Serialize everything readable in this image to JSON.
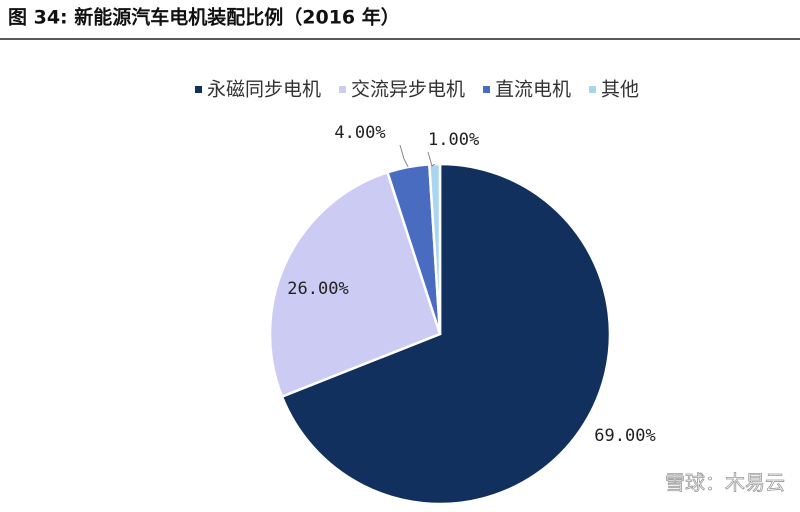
{
  "chart_data": {
    "type": "pie",
    "title": "图 34:  新能源汽车电机装配比例（2016 年）",
    "categories": [
      "永磁同步电机",
      "交流异步电机",
      "直流电机",
      "其他"
    ],
    "values": [
      69,
      26,
      4,
      1
    ],
    "value_labels": [
      "69.00%",
      "26.00%",
      "4.00%",
      "1.00%"
    ],
    "colors": [
      "#12305e",
      "#cccbf3",
      "#4a6cc0",
      "#a9d5ee"
    ],
    "legend": "top"
  },
  "watermark": "雪球：木易云"
}
